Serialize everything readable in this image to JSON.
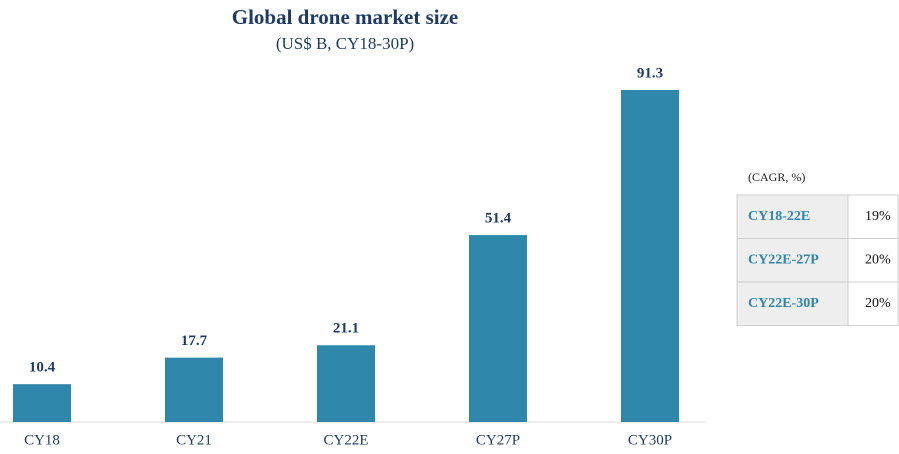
{
  "chart_data": {
    "type": "bar",
    "title": "Global drone market size",
    "subtitle": "(US$ B, CY18-30P)",
    "categories": [
      "CY18",
      "CY21",
      "CY22E",
      "CY27P",
      "CY30P"
    ],
    "values": [
      10.4,
      17.7,
      21.1,
      51.4,
      91.3
    ],
    "color": "#2f87ab"
  },
  "table": {
    "caption": "(CAGR, %)",
    "rows": [
      [
        "CY18-22E",
        "19%"
      ],
      [
        "CY22E-27P",
        "20%"
      ],
      [
        "CY22E-30P",
        "20%"
      ]
    ]
  }
}
